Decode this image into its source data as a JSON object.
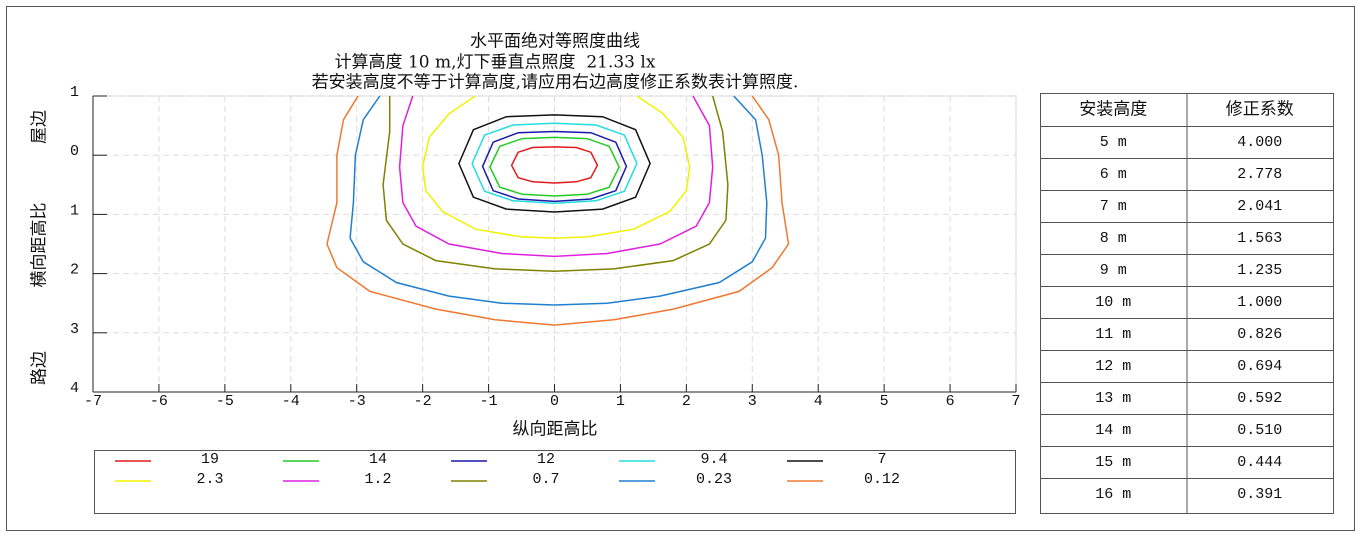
{
  "chart_data": {
    "type": "contour",
    "title": "水平面绝对等照度曲线",
    "subtitle": "计算高度 10 m,灯下垂直点照度  21.33 lx",
    "note": "若安装高度不等于计算高度,请应用右边高度修正系数表计算照度.",
    "x_label": "纵向距高比",
    "y_label": "横向距高比",
    "y_top_label": "屋边",
    "y_bottom_label": "路边",
    "xlim": [
      -7,
      7
    ],
    "ylim": [
      -1,
      4
    ],
    "xticks": [
      -7,
      -6,
      -5,
      -4,
      -3,
      -2,
      -1,
      0,
      1,
      2,
      3,
      4,
      5,
      6,
      7
    ],
    "yticks": [
      {
        "value": -1,
        "label": "1"
      },
      0,
      1,
      2,
      3,
      4
    ],
    "y_inverted": true,
    "grid": true,
    "series": [
      {
        "name": "19",
        "color": "#e31a1c",
        "closed": true,
        "x": [
          -0.65,
          -0.55,
          -0.33,
          0,
          0.33,
          0.55,
          0.65,
          0.55,
          0.33,
          0,
          -0.33,
          -0.55
        ],
        "y": [
          0.17,
          -0.05,
          -0.13,
          -0.14,
          -0.13,
          -0.05,
          0.17,
          0.38,
          0.45,
          0.47,
          0.45,
          0.38
        ]
      },
      {
        "name": "14",
        "color": "#22cc22",
        "closed": true,
        "x": [
          -0.98,
          -0.83,
          -0.49,
          0,
          0.49,
          0.83,
          0.98,
          0.83,
          0.49,
          0,
          -0.49,
          -0.83
        ],
        "y": [
          0.2,
          -0.15,
          -0.28,
          -0.3,
          -0.28,
          -0.15,
          0.2,
          0.54,
          0.66,
          0.69,
          0.66,
          0.54
        ]
      },
      {
        "name": "12",
        "color": "#1a1aaa",
        "closed": true,
        "x": [
          -1.09,
          -0.93,
          -0.55,
          0,
          0.55,
          0.93,
          1.09,
          0.93,
          0.55,
          0,
          -0.55,
          -0.93
        ],
        "y": [
          0.19,
          -0.22,
          -0.38,
          -0.4,
          -0.38,
          -0.22,
          0.19,
          0.6,
          0.74,
          0.78,
          0.74,
          0.6
        ]
      },
      {
        "name": "9.4",
        "color": "#22dddd",
        "closed": true,
        "x": [
          -1.25,
          -1.06,
          -0.63,
          0,
          0.63,
          1.06,
          1.25,
          1.06,
          0.63,
          0,
          -0.63,
          -1.06
        ],
        "y": [
          0.14,
          -0.34,
          -0.51,
          -0.54,
          -0.51,
          -0.34,
          0.14,
          0.61,
          0.77,
          0.81,
          0.77,
          0.61
        ]
      },
      {
        "name": "7",
        "color": "#111111",
        "closed": true,
        "x": [
          -1.45,
          -1.23,
          -0.73,
          0,
          0.73,
          1.23,
          1.45,
          1.23,
          0.73,
          0,
          -0.73,
          -1.23
        ],
        "y": [
          0.14,
          -0.43,
          -0.65,
          -0.68,
          -0.65,
          -0.43,
          0.14,
          0.71,
          0.91,
          0.96,
          0.91,
          0.71
        ]
      },
      {
        "name": "2.3",
        "color": "#f2f200",
        "closed": false,
        "x": [
          -1.2,
          -1.6,
          -1.9,
          -2.0,
          -1.95,
          -1.7,
          -1.2,
          -0.5,
          0,
          0.5,
          1.2,
          1.75,
          2.0,
          2.05,
          1.95,
          1.65,
          1.25
        ],
        "y": [
          -1,
          -0.7,
          -0.3,
          0.2,
          0.6,
          0.95,
          1.25,
          1.38,
          1.4,
          1.38,
          1.25,
          0.95,
          0.6,
          0.2,
          -0.3,
          -0.7,
          -1
        ]
      },
      {
        "name": "1.2",
        "color": "#e020e0",
        "closed": false,
        "x": [
          -2.15,
          -2.3,
          -2.35,
          -2.3,
          -2.1,
          -1.6,
          -0.8,
          0,
          0.8,
          1.6,
          2.15,
          2.35,
          2.4,
          2.35,
          2.1
        ],
        "y": [
          -1,
          -0.5,
          0.2,
          0.8,
          1.2,
          1.5,
          1.66,
          1.71,
          1.66,
          1.5,
          1.2,
          0.8,
          0.2,
          -0.5,
          -1
        ]
      },
      {
        "name": "0.7",
        "color": "#808000",
        "closed": false,
        "x": [
          -2.5,
          -2.5,
          -2.6,
          -2.55,
          -2.3,
          -1.8,
          -0.9,
          0,
          0.9,
          1.8,
          2.35,
          2.6,
          2.63,
          2.55,
          2.4
        ],
        "y": [
          -1,
          -0.4,
          0.5,
          1.1,
          1.5,
          1.78,
          1.92,
          1.96,
          1.92,
          1.78,
          1.5,
          1.1,
          0.5,
          -0.4,
          -1
        ]
      },
      {
        "name": "0.23",
        "color": "#1f7fd0",
        "closed": false,
        "x": [
          -2.65,
          -2.9,
          -3.02,
          -3.05,
          -3.1,
          -2.9,
          -2.4,
          -1.6,
          -0.8,
          0,
          0.8,
          1.6,
          2.5,
          3.0,
          3.2,
          3.22,
          3.15,
          3.05,
          2.72
        ],
        "y": [
          -1,
          -0.6,
          0,
          0.8,
          1.4,
          1.8,
          2.15,
          2.38,
          2.5,
          2.53,
          2.5,
          2.38,
          2.15,
          1.8,
          1.4,
          0.8,
          0,
          -0.6,
          -1
        ]
      },
      {
        "name": "0.12",
        "color": "#f07830",
        "closed": false,
        "x": [
          -2.98,
          -3.2,
          -3.3,
          -3.3,
          -3.45,
          -3.3,
          -2.8,
          -1.8,
          -0.9,
          0,
          0.9,
          1.8,
          2.8,
          3.3,
          3.55,
          3.45,
          3.4,
          3.25,
          3.0
        ],
        "y": [
          -1,
          -0.6,
          0,
          0.8,
          1.5,
          1.9,
          2.3,
          2.6,
          2.78,
          2.87,
          2.78,
          2.6,
          2.3,
          1.9,
          1.5,
          0.8,
          0,
          -0.6,
          -1
        ]
      }
    ]
  },
  "table": {
    "header": [
      "安装高度",
      "修正系数"
    ],
    "rows": [
      [
        "5 m",
        "4.000"
      ],
      [
        "6 m",
        "2.778"
      ],
      [
        "7 m",
        "2.041"
      ],
      [
        "8 m",
        "1.563"
      ],
      [
        "9 m",
        "1.235"
      ],
      [
        "10 m",
        "1.000"
      ],
      [
        "11 m",
        "0.826"
      ],
      [
        "12 m",
        "0.694"
      ],
      [
        "13 m",
        "0.592"
      ],
      [
        "14 m",
        "0.510"
      ],
      [
        "15 m",
        "0.444"
      ],
      [
        "16 m",
        "0.391"
      ]
    ]
  }
}
